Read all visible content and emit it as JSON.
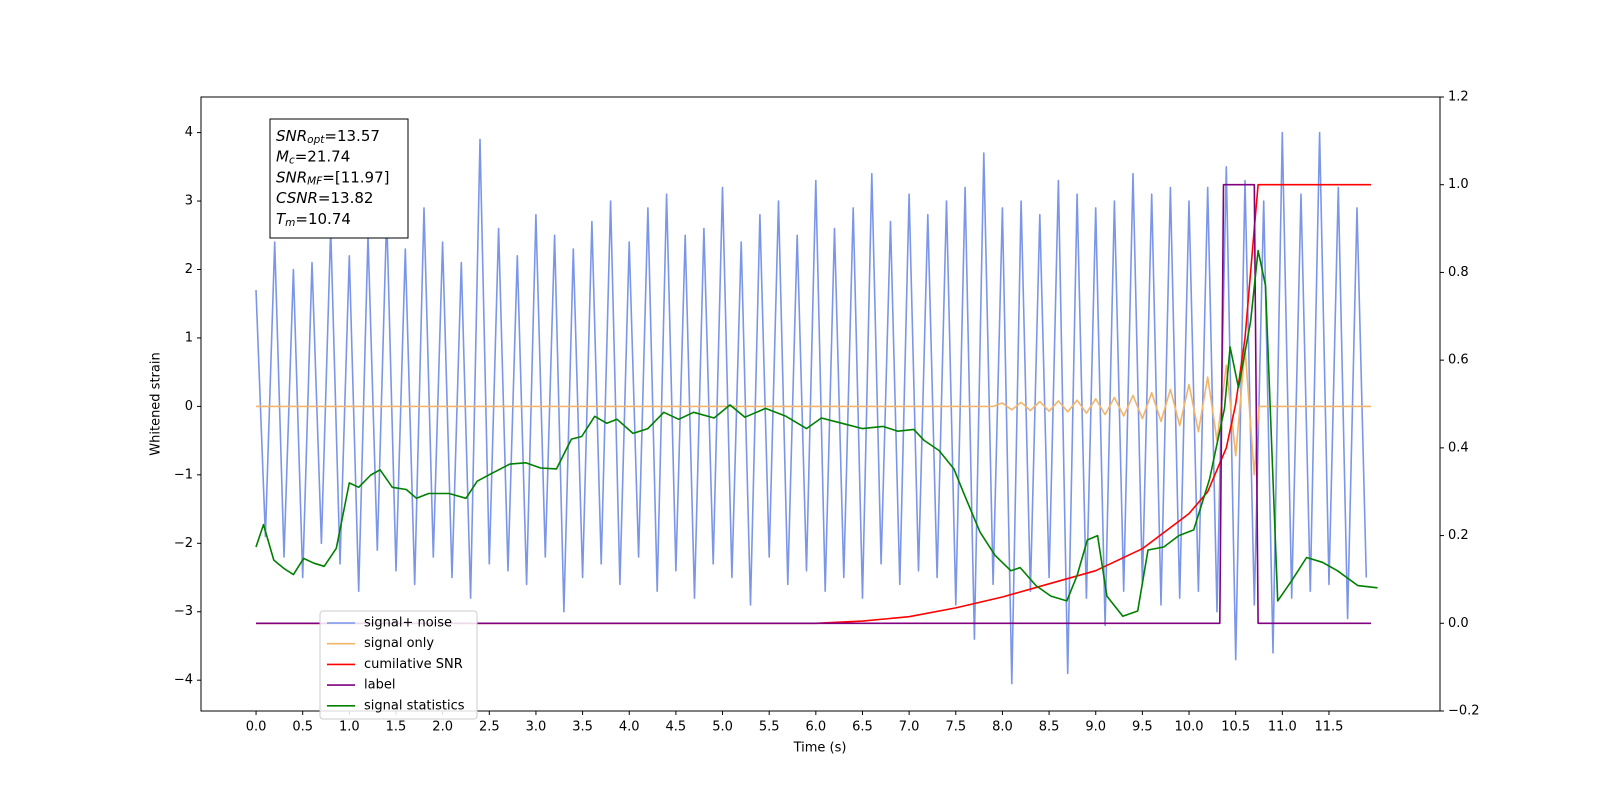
{
  "chart_data": {
    "type": "line",
    "xlabel": "Time (s)",
    "ylabel": "Whitened strain",
    "xlim": [
      -0.59,
      12.69
    ],
    "ylim": [
      -4.45,
      4.52
    ],
    "y2lim": [
      -0.2,
      1.2
    ],
    "xticks": [
      {
        "value": 0,
        "label": "0.0"
      },
      0.5,
      {
        "value": 1,
        "label": "1.0"
      },
      1.5,
      {
        "value": 2,
        "label": "2.0"
      },
      2.5,
      {
        "value": 3,
        "label": "3.0"
      },
      3.5,
      {
        "value": 4,
        "label": "4.0"
      },
      4.5,
      {
        "value": 5,
        "label": "5.0"
      },
      5.5,
      {
        "value": 6,
        "label": "6.0"
      },
      6.5,
      {
        "value": 7,
        "label": "7.0"
      },
      7.5,
      {
        "value": 8,
        "label": "8.0"
      },
      8.5,
      {
        "value": 9,
        "label": "9.0"
      },
      9.5,
      {
        "value": 10,
        "label": "10.0"
      },
      10.5,
      {
        "value": 11,
        "label": "11.0"
      },
      11.5
    ],
    "yticks": [
      {
        "value": -4,
        "label": "−4"
      },
      {
        "value": -3,
        "label": "−3"
      },
      {
        "value": -2,
        "label": "−2"
      },
      {
        "value": -1,
        "label": "−1"
      },
      0,
      1,
      2,
      3,
      4
    ],
    "y2ticks": [
      {
        "value": -0.2,
        "label": "−0.2"
      },
      {
        "value": 0,
        "label": "0.0"
      },
      0.2,
      0.4,
      0.6,
      0.8,
      {
        "value": 1,
        "label": "1.0"
      },
      1.2
    ],
    "annotations": [
      {
        "text": "SNR",
        "sub": "opt",
        "value": "=13.57"
      },
      {
        "text": "M",
        "sub": "c",
        "value": "=21.74"
      },
      {
        "text": "SNR",
        "sub": "MF",
        "value": "=[11.97]"
      },
      {
        "text": "CSNR",
        "value": "=13.82"
      },
      {
        "text": "T",
        "sub": "m",
        "value": "=10.74"
      }
    ],
    "series": [
      {
        "name": "signal+ noise",
        "color": "#7b96e8",
        "axis": "y",
        "x": [
          0.0,
          0.1,
          0.2,
          0.3,
          0.4,
          0.5,
          0.6,
          0.7,
          0.8,
          0.9,
          1.0,
          1.1,
          1.2,
          1.3,
          1.4,
          1.5,
          1.6,
          1.7,
          1.8,
          1.9,
          2.0,
          2.1,
          2.2,
          2.3,
          2.4,
          2.5,
          2.6,
          2.7,
          2.8,
          2.9,
          3.0,
          3.1,
          3.2,
          3.3,
          3.4,
          3.5,
          3.6,
          3.7,
          3.8,
          3.9,
          4.0,
          4.1,
          4.2,
          4.3,
          4.4,
          4.5,
          4.6,
          4.7,
          4.8,
          4.9,
          5.0,
          5.1,
          5.2,
          5.3,
          5.4,
          5.5,
          5.6,
          5.7,
          5.8,
          5.9,
          6.0,
          6.1,
          6.2,
          6.3,
          6.4,
          6.5,
          6.6,
          6.7,
          6.8,
          6.9,
          7.0,
          7.1,
          7.2,
          7.3,
          7.4,
          7.5,
          7.6,
          7.7,
          7.8,
          7.9,
          8.0,
          8.1,
          8.2,
          8.3,
          8.4,
          8.5,
          8.6,
          8.7,
          8.8,
          8.9,
          9.0,
          9.1,
          9.2,
          9.3,
          9.4,
          9.5,
          9.6,
          9.7,
          9.8,
          9.9,
          10.0,
          10.1,
          10.2,
          10.3,
          10.4,
          10.5,
          10.6,
          10.7,
          10.8,
          10.9,
          11.0,
          11.1,
          11.2,
          11.3,
          11.4,
          11.5,
          11.6,
          11.7,
          11.8,
          11.9
        ],
        "values": [
          1.7,
          -1.9,
          2.4,
          -2.2,
          2.0,
          -2.5,
          2.1,
          -2.0,
          2.6,
          -2.3,
          2.2,
          -2.7,
          2.5,
          -2.1,
          2.8,
          -2.4,
          2.3,
          -2.6,
          2.9,
          -2.2,
          2.4,
          -2.5,
          2.1,
          -2.8,
          3.9,
          -2.3,
          2.6,
          -2.4,
          2.2,
          -2.6,
          2.8,
          -2.2,
          2.5,
          -3.0,
          2.3,
          -2.5,
          2.7,
          -2.3,
          3.0,
          -2.6,
          2.4,
          -2.2,
          2.9,
          -2.7,
          3.1,
          -2.4,
          2.5,
          -2.8,
          2.6,
          -2.3,
          3.2,
          -2.5,
          2.4,
          -2.9,
          2.8,
          -2.2,
          3.0,
          -2.6,
          2.5,
          -2.4,
          3.3,
          -2.7,
          2.6,
          -2.5,
          2.9,
          -2.8,
          3.4,
          -2.3,
          2.7,
          -2.6,
          3.1,
          -2.4,
          2.8,
          -2.5,
          3.0,
          -2.9,
          3.2,
          -3.4,
          3.7,
          -2.6,
          2.9,
          -4.05,
          3.0,
          -2.7,
          2.8,
          -2.5,
          3.3,
          -3.9,
          3.1,
          -2.8,
          2.9,
          -3.2,
          3.0,
          -2.7,
          3.4,
          -2.6,
          3.1,
          -2.9,
          3.2,
          -2.8,
          3.0,
          -2.7,
          3.2,
          -3.0,
          3.5,
          -3.7,
          3.3,
          -2.9,
          3.0,
          -3.6,
          4.0,
          -2.8,
          3.1,
          -2.7,
          4.0,
          -2.6,
          3.2,
          -3.1,
          2.9,
          -2.5
        ]
      },
      {
        "name": "signal only",
        "color": "#f2b56a",
        "axis": "y",
        "x": [
          0,
          7.9,
          8.0,
          8.1,
          8.2,
          8.3,
          8.4,
          8.5,
          8.6,
          8.7,
          8.8,
          8.9,
          9.0,
          9.1,
          9.2,
          9.3,
          9.4,
          9.5,
          9.6,
          9.7,
          9.8,
          9.9,
          10.0,
          10.1,
          10.2,
          10.3,
          10.4,
          10.5,
          10.6,
          10.7,
          10.75,
          11.95
        ],
        "values": [
          0,
          0,
          0.05,
          -0.05,
          0.06,
          -0.06,
          0.07,
          -0.07,
          0.08,
          -0.08,
          0.09,
          -0.1,
          0.11,
          -0.12,
          0.13,
          -0.14,
          0.16,
          -0.18,
          0.2,
          -0.22,
          0.25,
          -0.28,
          0.32,
          -0.37,
          0.43,
          -0.5,
          0.6,
          -0.72,
          0.85,
          -1.0,
          0,
          0
        ]
      },
      {
        "name": "cumilative SNR",
        "color": "#ff0000",
        "axis": "y2",
        "x": [
          0,
          6,
          6.5,
          7,
          7.5,
          8,
          8.5,
          9,
          9.5,
          10,
          10.2,
          10.4,
          10.5,
          10.6,
          10.7,
          10.74,
          11.95
        ],
        "values": [
          0,
          0,
          0.005,
          0.015,
          0.035,
          0.06,
          0.09,
          0.12,
          0.17,
          0.25,
          0.3,
          0.4,
          0.5,
          0.65,
          0.9,
          1.0,
          1.0
        ]
      },
      {
        "name": "label",
        "color": "#800080",
        "axis": "y2",
        "x": [
          0,
          10.33,
          10.37,
          10.7,
          10.74,
          11.95
        ],
        "values": [
          0,
          0,
          1,
          1,
          0,
          0
        ]
      },
      {
        "name": "signal statistics",
        "color": "#008000",
        "axis": "y2",
        "x": [
          0,
          0.08,
          0.19,
          0.3,
          0.4,
          0.51,
          0.62,
          0.73,
          0.86,
          1.0,
          1.1,
          1.23,
          1.33,
          1.46,
          1.61,
          1.72,
          1.85,
          1.96,
          2.07,
          2.25,
          2.37,
          2.51,
          2.72,
          2.89,
          3.05,
          3.22,
          3.38,
          3.49,
          3.63,
          3.76,
          3.87,
          4.04,
          4.2,
          4.37,
          4.53,
          4.69,
          4.91,
          5.08,
          5.24,
          5.46,
          5.68,
          5.9,
          6.06,
          6.28,
          6.5,
          6.72,
          6.88,
          7.05,
          7.16,
          7.32,
          7.48,
          7.59,
          7.76,
          7.92,
          8.09,
          8.19,
          8.36,
          8.52,
          8.69,
          8.8,
          8.91,
          9.02,
          9.12,
          9.29,
          9.45,
          9.56,
          9.73,
          9.89,
          10.05,
          10.22,
          10.38,
          10.44,
          10.53,
          10.66,
          10.74,
          10.82,
          10.95,
          11.1,
          11.26,
          11.43,
          11.59,
          11.81,
          12.02
        ],
        "values": [
          0.174,
          0.225,
          0.144,
          0.125,
          0.111,
          0.148,
          0.137,
          0.13,
          0.171,
          0.32,
          0.31,
          0.338,
          0.35,
          0.31,
          0.305,
          0.285,
          0.296,
          0.296,
          0.296,
          0.285,
          0.324,
          0.34,
          0.363,
          0.366,
          0.354,
          0.352,
          0.42,
          0.426,
          0.472,
          0.456,
          0.465,
          0.433,
          0.444,
          0.481,
          0.465,
          0.481,
          0.468,
          0.498,
          0.47,
          0.49,
          0.472,
          0.444,
          0.468,
          0.456,
          0.444,
          0.449,
          0.438,
          0.442,
          0.417,
          0.394,
          0.352,
          0.294,
          0.208,
          0.155,
          0.12,
          0.127,
          0.086,
          0.062,
          0.051,
          0.109,
          0.19,
          0.2,
          0.062,
          0.016,
          0.028,
          0.167,
          0.174,
          0.2,
          0.213,
          0.329,
          0.49,
          0.63,
          0.537,
          0.688,
          0.85,
          0.77,
          0.051,
          0.097,
          0.15,
          0.139,
          0.12,
          0.086,
          0.081
        ]
      }
    ]
  }
}
